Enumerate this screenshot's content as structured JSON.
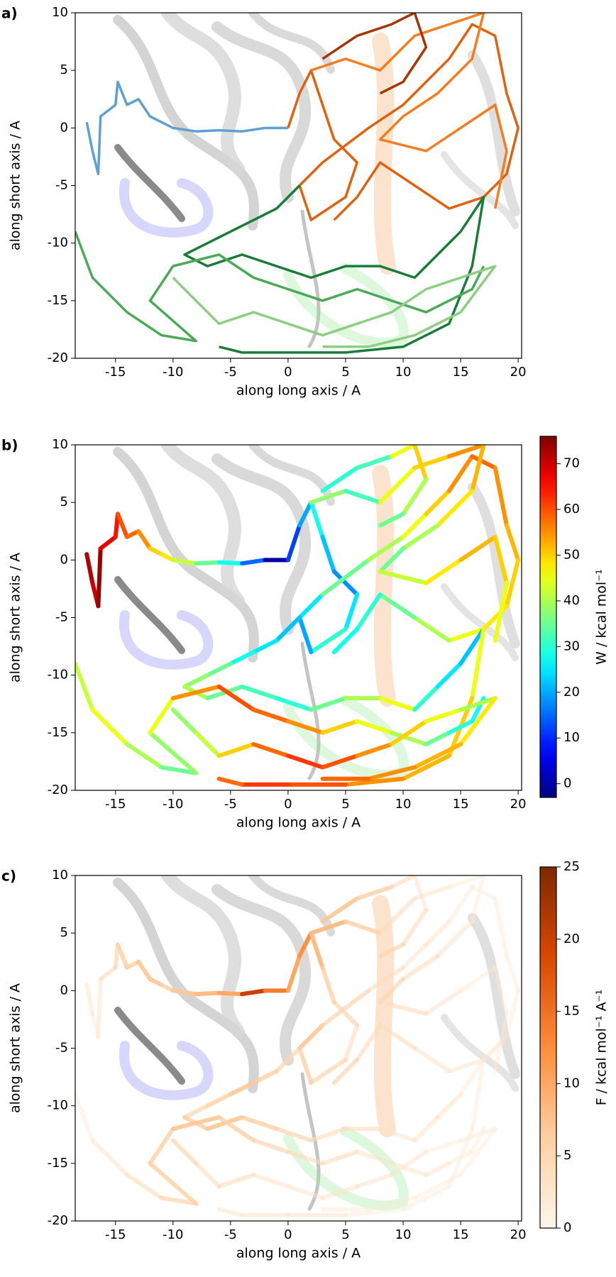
{
  "chart_data": [
    {
      "type": "line",
      "panel": "a)",
      "xlabel": "along long axis / A",
      "ylabel": "along short axis / A",
      "xlim": [
        -18.5,
        20.3
      ],
      "ylim": [
        -20,
        10
      ],
      "xticks": [
        -15,
        -10,
        -5,
        0,
        5,
        10,
        15,
        20
      ],
      "yticks": [
        -20,
        -15,
        -10,
        -5,
        0,
        5,
        10
      ],
      "series": [
        {
          "color": "#5ea0cf",
          "x": [
            -17.5,
            -17,
            -16.5,
            -16.3,
            -15,
            -14.8,
            -14,
            -13,
            -12,
            -11,
            -10,
            -8,
            -6,
            -4,
            -2,
            0
          ],
          "y": [
            0.5,
            -2,
            -4,
            1,
            2,
            4,
            2,
            2.5,
            1,
            0.5,
            0,
            -0.3,
            -0.2,
            -0.3,
            0,
            0
          ]
        },
        {
          "color": "#e0620f",
          "x": [
            0,
            1,
            2,
            3,
            4,
            6,
            5,
            2,
            1,
            3,
            7,
            10,
            12,
            14,
            16,
            18,
            19,
            20,
            19,
            17,
            14,
            11,
            8,
            6,
            4
          ],
          "y": [
            0,
            3,
            5,
            2,
            -1,
            -3,
            -6,
            -8,
            -5,
            -3,
            0,
            2,
            4,
            6,
            9,
            8,
            3,
            0,
            -4,
            -6,
            -7,
            -5,
            -3,
            -6,
            -8
          ]
        },
        {
          "color": "#f47d20",
          "x": [
            2,
            5,
            8,
            11,
            14,
            17,
            16,
            13,
            10,
            8,
            12,
            15,
            18,
            19,
            18
          ],
          "y": [
            5,
            6,
            5,
            8,
            9,
            10,
            6,
            3,
            1,
            -1,
            -2,
            0,
            2,
            -2,
            -7
          ]
        },
        {
          "color": "#a63603",
          "x": [
            3,
            6,
            9,
            11,
            12,
            10,
            8
          ],
          "y": [
            6,
            8,
            9,
            10,
            7,
            4,
            3
          ]
        },
        {
          "color": "#1a7c3a",
          "x": [
            1,
            -1,
            -3,
            -5,
            -7,
            -9,
            -7,
            -4,
            -1,
            2,
            5,
            8,
            11,
            13,
            15,
            17,
            16,
            14,
            10,
            5,
            0,
            -4,
            -6
          ],
          "y": [
            -5,
            -7,
            -8,
            -9,
            -10,
            -11,
            -12,
            -11,
            -12,
            -13,
            -12,
            -12,
            -13,
            -11,
            -9,
            -6,
            -12,
            -17,
            -19,
            -19.5,
            -19.5,
            -19.5,
            -19
          ]
        },
        {
          "color": "#4aaa55",
          "x": [
            -18.5,
            -17,
            -14,
            -11,
            -8,
            -12,
            -10,
            -6,
            -3,
            0,
            3,
            6,
            9,
            12,
            14,
            16,
            17
          ],
          "y": [
            -9,
            -13,
            -16,
            -18,
            -18.5,
            -15,
            -12,
            -11,
            -13,
            -14,
            -15,
            -14,
            -15,
            -16,
            -15,
            -14,
            -12
          ]
        },
        {
          "color": "#8ccf80",
          "x": [
            -10,
            -8,
            -6,
            -3,
            0,
            3,
            6,
            9,
            12,
            15,
            18,
            15,
            11,
            7,
            3
          ],
          "y": [
            -13,
            -15,
            -17,
            -16,
            -17,
            -18,
            -17,
            -16,
            -14,
            -13,
            -12,
            -16,
            -18,
            -19,
            -19
          ]
        }
      ]
    },
    {
      "type": "line",
      "panel": "b)",
      "xlabel": "along long axis / A",
      "ylabel": "along short axis / A",
      "xlim": [
        -18.5,
        20.3
      ],
      "ylim": [
        -20,
        10
      ],
      "xticks": [
        -15,
        -10,
        -5,
        0,
        5,
        10,
        15,
        20
      ],
      "yticks": [
        -20,
        -15,
        -10,
        -5,
        0,
        5,
        10
      ],
      "colormap": "jet",
      "clabel": "W / kcal mol⁻¹",
      "clim": [
        -3,
        76
      ],
      "cticks": [
        0,
        10,
        20,
        30,
        40,
        50,
        60,
        70
      ],
      "series": [
        {
          "x": [
            -17.5,
            -17,
            -16.5,
            -16.3,
            -15,
            -14.8,
            -14,
            -13,
            -12,
            -11,
            -10,
            -8,
            -6,
            -4,
            -2,
            0
          ],
          "y": [
            0.5,
            -2,
            -4,
            1,
            2,
            4,
            2,
            2.5,
            1,
            0.5,
            0,
            -0.3,
            -0.2,
            -0.3,
            0,
            0
          ],
          "c": [
            75,
            72,
            70,
            74,
            68,
            65,
            60,
            58,
            55,
            50,
            48,
            42,
            35,
            28,
            15,
            0
          ]
        },
        {
          "x": [
            0,
            1,
            2,
            3,
            4,
            6,
            5,
            2,
            1,
            3,
            7,
            10,
            12,
            14,
            16,
            18,
            19,
            20,
            19,
            17,
            14,
            11,
            8,
            6,
            4
          ],
          "y": [
            0,
            3,
            5,
            2,
            -1,
            -3,
            -6,
            -8,
            -5,
            -3,
            0,
            2,
            4,
            6,
            9,
            8,
            3,
            0,
            -4,
            -6,
            -7,
            -5,
            -3,
            -6,
            -8
          ],
          "c": [
            2,
            12,
            20,
            28,
            22,
            18,
            25,
            30,
            20,
            25,
            35,
            40,
            45,
            50,
            55,
            58,
            55,
            52,
            50,
            48,
            45,
            40,
            35,
            30,
            28
          ]
        },
        {
          "x": [
            2,
            5,
            8,
            11,
            14,
            17,
            16,
            13,
            10,
            8,
            12,
            15,
            18,
            19,
            18
          ],
          "y": [
            5,
            6,
            5,
            8,
            9,
            10,
            6,
            3,
            1,
            -1,
            -2,
            0,
            2,
            -2,
            -7
          ],
          "c": [
            35,
            38,
            32,
            45,
            50,
            55,
            52,
            48,
            40,
            35,
            42,
            48,
            52,
            50,
            45
          ]
        },
        {
          "x": [
            3,
            6,
            9,
            11,
            12,
            10,
            8
          ],
          "y": [
            6,
            8,
            9,
            10,
            7,
            4,
            3
          ],
          "c": [
            38,
            30,
            32,
            45,
            50,
            40,
            35
          ]
        },
        {
          "x": [
            1,
            -1,
            -3,
            -5,
            -7,
            -9,
            -7,
            -4,
            -1,
            2,
            5,
            8,
            11,
            13,
            15,
            17,
            16,
            14,
            10,
            5,
            0,
            -4,
            -6
          ],
          "y": [
            -5,
            -7,
            -8,
            -9,
            -10,
            -11,
            -12,
            -11,
            -12,
            -13,
            -12,
            -12,
            -13,
            -11,
            -9,
            -6,
            -12,
            -17,
            -19,
            -19.5,
            -19.5,
            -19.5,
            -19
          ],
          "c": [
            20,
            22,
            25,
            28,
            35,
            38,
            40,
            35,
            32,
            30,
            35,
            40,
            45,
            30,
            25,
            22,
            45,
            50,
            52,
            55,
            60,
            62,
            58
          ]
        },
        {
          "x": [
            -18.5,
            -17,
            -14,
            -11,
            -8,
            -12,
            -10,
            -6,
            -3,
            0,
            3,
            6,
            9,
            12,
            14,
            16,
            17
          ],
          "y": [
            -9,
            -13,
            -16,
            -18,
            -18.5,
            -15,
            -12,
            -11,
            -13,
            -14,
            -15,
            -14,
            -15,
            -16,
            -15,
            -14,
            -12
          ],
          "c": [
            40,
            42,
            45,
            40,
            35,
            38,
            45,
            55,
            60,
            58,
            55,
            50,
            45,
            40,
            35,
            30,
            28
          ]
        },
        {
          "x": [
            -10,
            -8,
            -6,
            -3,
            0,
            3,
            6,
            9,
            12,
            15,
            18,
            15,
            11,
            7,
            3
          ],
          "y": [
            -13,
            -15,
            -17,
            -16,
            -17,
            -18,
            -17,
            -16,
            -14,
            -13,
            -12,
            -16,
            -18,
            -19,
            -19
          ],
          "c": [
            35,
            38,
            42,
            50,
            58,
            62,
            60,
            55,
            50,
            45,
            40,
            48,
            52,
            55,
            58
          ]
        }
      ]
    },
    {
      "type": "line",
      "panel": "c)",
      "xlabel": "along long axis / A",
      "ylabel": "along short axis / A",
      "xlim": [
        -18.5,
        20.3
      ],
      "ylim": [
        -20,
        10
      ],
      "xticks": [
        -15,
        -10,
        -5,
        0,
        5,
        10,
        15,
        20
      ],
      "yticks": [
        -20,
        -15,
        -10,
        -5,
        0,
        5,
        10
      ],
      "colormap": "Oranges",
      "clabel": "F / kcal mol⁻¹ A⁻¹",
      "clim": [
        0,
        25
      ],
      "cticks": [
        0,
        5,
        10,
        15,
        20,
        25
      ],
      "series": [
        {
          "x": [
            -17.5,
            -17,
            -16.5,
            -16.3,
            -15,
            -14.8,
            -14,
            -13,
            -12,
            -11,
            -10,
            -8,
            -6,
            -4,
            -2,
            0
          ],
          "y": [
            0.5,
            -2,
            -4,
            1,
            2,
            4,
            2,
            2.5,
            1,
            0.5,
            0,
            -0.3,
            -0.2,
            -0.3,
            0,
            0
          ],
          "c": [
            3,
            3,
            2,
            3,
            4,
            5,
            6,
            6,
            7,
            7,
            6,
            7,
            8,
            10,
            20,
            14
          ]
        },
        {
          "x": [
            0,
            1,
            2,
            3,
            4,
            6,
            5,
            2,
            1,
            3,
            7,
            10,
            12,
            14,
            16,
            18,
            19,
            20,
            19,
            17,
            14,
            11,
            8,
            6,
            4
          ],
          "y": [
            0,
            3,
            5,
            2,
            -1,
            -3,
            -6,
            -8,
            -5,
            -3,
            0,
            2,
            4,
            6,
            9,
            8,
            3,
            0,
            -4,
            -6,
            -7,
            -5,
            -3,
            -6,
            -8
          ],
          "c": [
            14,
            10,
            12,
            8,
            6,
            5,
            4,
            5,
            6,
            7,
            5,
            4,
            3,
            3,
            2,
            2,
            2,
            2,
            2,
            3,
            3,
            3,
            4,
            4,
            5
          ]
        },
        {
          "x": [
            2,
            5,
            8,
            11,
            14,
            17,
            16,
            13,
            10,
            8,
            12,
            15,
            18,
            19,
            18
          ],
          "y": [
            5,
            6,
            5,
            8,
            9,
            10,
            6,
            3,
            1,
            -1,
            -2,
            0,
            2,
            -2,
            -7
          ],
          "c": [
            10,
            8,
            6,
            4,
            3,
            2,
            2,
            3,
            4,
            5,
            4,
            3,
            2,
            2,
            2
          ]
        },
        {
          "x": [
            3,
            6,
            9,
            11,
            12,
            10,
            8
          ],
          "y": [
            6,
            8,
            9,
            10,
            7,
            4,
            3
          ],
          "c": [
            8,
            7,
            6,
            4,
            3,
            4,
            5
          ]
        },
        {
          "x": [
            1,
            -1,
            -3,
            -5,
            -7,
            -9,
            -7,
            -4,
            -1,
            2,
            5,
            8,
            11,
            13,
            15,
            17,
            16,
            14,
            10,
            5,
            0,
            -4,
            -6
          ],
          "y": [
            -5,
            -7,
            -8,
            -9,
            -10,
            -11,
            -12,
            -11,
            -12,
            -13,
            -12,
            -12,
            -13,
            -11,
            -9,
            -6,
            -12,
            -17,
            -19,
            -19.5,
            -19.5,
            -19.5,
            -19
          ],
          "c": [
            6,
            5,
            6,
            7,
            6,
            5,
            6,
            7,
            6,
            5,
            4,
            4,
            3,
            3,
            3,
            2,
            2,
            2,
            2,
            2,
            3,
            3,
            3
          ]
        },
        {
          "x": [
            -18.5,
            -17,
            -14,
            -11,
            -8,
            -12,
            -10,
            -6,
            -3,
            0,
            3,
            6,
            9,
            12,
            14,
            16,
            17
          ],
          "y": [
            -9,
            -13,
            -16,
            -18,
            -18.5,
            -15,
            -12,
            -11,
            -13,
            -14,
            -15,
            -14,
            -15,
            -16,
            -15,
            -14,
            -12
          ],
          "c": [
            1,
            2,
            3,
            4,
            5,
            6,
            6,
            7,
            6,
            5,
            4,
            4,
            3,
            3,
            3,
            2,
            2
          ]
        },
        {
          "x": [
            -10,
            -8,
            -6,
            -3,
            0,
            3,
            6,
            9,
            12,
            15,
            18,
            15,
            11,
            7,
            3
          ],
          "y": [
            -13,
            -15,
            -17,
            -16,
            -17,
            -18,
            -17,
            -16,
            -14,
            -13,
            -12,
            -16,
            -18,
            -19,
            -19
          ],
          "c": [
            5,
            5,
            4,
            4,
            3,
            3,
            3,
            3,
            3,
            2,
            2,
            2,
            2,
            2,
            2
          ]
        }
      ]
    }
  ]
}
